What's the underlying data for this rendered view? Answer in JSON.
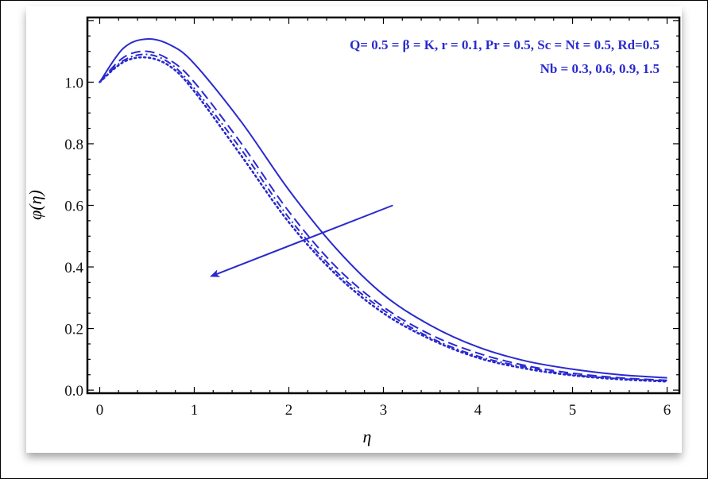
{
  "chart_data": {
    "type": "line",
    "title": "",
    "xlabel": "η",
    "ylabel": "φ(η)",
    "xlim": [
      -0.13,
      6.13
    ],
    "ylim": [
      -0.01,
      1.21
    ],
    "xticks": [
      0,
      1,
      2,
      3,
      4,
      5,
      6
    ],
    "xtick_labels": [
      "0",
      "1",
      "2",
      "3",
      "4",
      "5",
      "6"
    ],
    "yticks": [
      0.0,
      0.2,
      0.4,
      0.6,
      0.8,
      1.0
    ],
    "ytick_labels": [
      "0.0",
      "0.2",
      "0.4",
      "0.6",
      "0.8",
      "1.0"
    ],
    "grid": false,
    "line_color": "#2a2acf",
    "annotations": {
      "params": "Q= 0.5 = β = K, r = 0.1, Pr = 0.5, Sc = Nt = 0.5, Rd=0.5",
      "varying": "Nb = 0.3, 0.6, 0.9, 1.5"
    },
    "arrow": {
      "from": [
        3.1,
        0.6
      ],
      "to": [
        1.18,
        0.37
      ],
      "meaning": "increasing Nb"
    },
    "x": [
      0,
      0.25,
      0.5,
      0.75,
      1,
      1.5,
      2,
      2.5,
      3,
      3.5,
      4,
      4.5,
      5,
      5.5,
      6
    ],
    "series": [
      {
        "style": "solid",
        "values": [
          1.0,
          1.11,
          1.14,
          1.12,
          1.06,
          0.87,
          0.65,
          0.46,
          0.31,
          0.21,
          0.14,
          0.095,
          0.068,
          0.05,
          0.04
        ]
      },
      {
        "style": "dashed",
        "values": [
          1.0,
          1.08,
          1.1,
          1.07,
          1.0,
          0.8,
          0.58,
          0.4,
          0.27,
          0.18,
          0.12,
          0.08,
          0.055,
          0.04,
          0.032
        ]
      },
      {
        "style": "dashdot",
        "values": [
          1.0,
          1.07,
          1.09,
          1.06,
          0.98,
          0.78,
          0.56,
          0.385,
          0.26,
          0.17,
          0.11,
          0.075,
          0.05,
          0.037,
          0.03
        ]
      },
      {
        "style": "dotted",
        "values": [
          1.0,
          1.065,
          1.08,
          1.05,
          0.97,
          0.76,
          0.545,
          0.375,
          0.25,
          0.165,
          0.105,
          0.07,
          0.048,
          0.035,
          0.028
        ]
      }
    ]
  }
}
